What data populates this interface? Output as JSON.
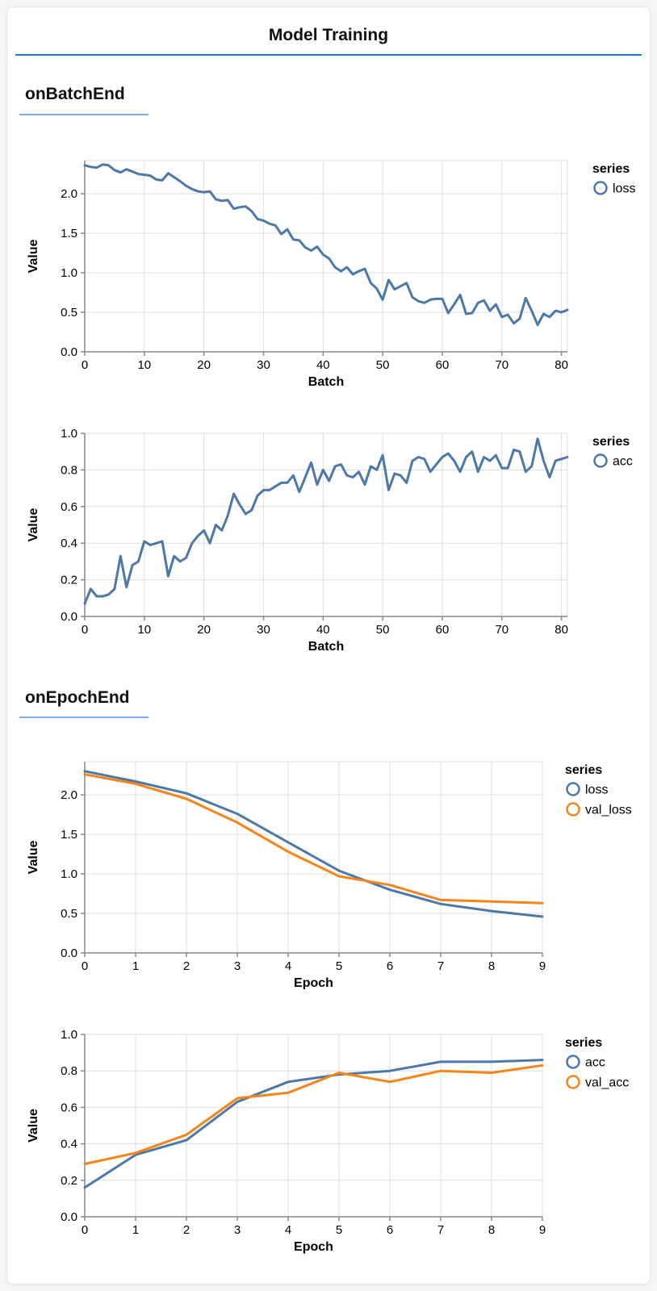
{
  "window": {
    "title": "Model Training"
  },
  "sections": [
    {
      "title": "onBatchEnd"
    },
    {
      "title": "onEpochEnd"
    }
  ],
  "colors": {
    "series_blue": "#4c78a8",
    "series_orange": "#f58518",
    "title_underline": "#1a73e8",
    "section_underline": "#7baaf7",
    "grid": "#dddddd",
    "axis_domain": "#888888",
    "text": "#000000"
  },
  "chart_data": [
    {
      "type": "line",
      "section": "onBatchEnd",
      "xlabel": "Batch",
      "ylabel": "Value",
      "xlim": [
        0,
        81
      ],
      "ylim": [
        0,
        2.42
      ],
      "xticks": [
        0,
        10,
        20,
        30,
        40,
        50,
        60,
        70,
        80
      ],
      "xtick_labels": [
        "0",
        "10",
        "20",
        "30",
        "40",
        "50",
        "60",
        "70",
        "80"
      ],
      "yticks": [
        0,
        0.5,
        1.0,
        1.5,
        2.0
      ],
      "ytick_labels": [
        "0.0",
        "0.5",
        "1.0",
        "1.5",
        "2.0"
      ],
      "grid": true,
      "legend_position": "right",
      "legend_title": "series",
      "series": [
        {
          "name": "loss",
          "color": "#4c78a8",
          "values": [
            2.36,
            2.34,
            2.33,
            2.37,
            2.36,
            2.3,
            2.27,
            2.31,
            2.28,
            2.25,
            2.24,
            2.23,
            2.18,
            2.17,
            2.26,
            2.21,
            2.16,
            2.1,
            2.06,
            2.03,
            2.02,
            2.03,
            1.93,
            1.91,
            1.92,
            1.81,
            1.83,
            1.84,
            1.78,
            1.68,
            1.66,
            1.62,
            1.6,
            1.49,
            1.55,
            1.42,
            1.41,
            1.32,
            1.28,
            1.33,
            1.23,
            1.18,
            1.07,
            1.02,
            1.07,
            0.98,
            1.02,
            1.05,
            0.87,
            0.8,
            0.66,
            0.91,
            0.79,
            0.83,
            0.87,
            0.69,
            0.64,
            0.62,
            0.66,
            0.67,
            0.67,
            0.49,
            0.6,
            0.72,
            0.48,
            0.49,
            0.62,
            0.65,
            0.52,
            0.6,
            0.44,
            0.47,
            0.36,
            0.42,
            0.68,
            0.52,
            0.34,
            0.48,
            0.44,
            0.52,
            0.5,
            0.53
          ]
        }
      ]
    },
    {
      "type": "line",
      "section": "onBatchEnd",
      "xlabel": "Batch",
      "ylabel": "Value",
      "xlim": [
        0,
        81
      ],
      "ylim": [
        0,
        1.0
      ],
      "xticks": [
        0,
        10,
        20,
        30,
        40,
        50,
        60,
        70,
        80
      ],
      "xtick_labels": [
        "0",
        "10",
        "20",
        "30",
        "40",
        "50",
        "60",
        "70",
        "80"
      ],
      "yticks": [
        0,
        0.2,
        0.4,
        0.6,
        0.8,
        1.0
      ],
      "ytick_labels": [
        "0.0",
        "0.2",
        "0.4",
        "0.6",
        "0.8",
        "1.0"
      ],
      "grid": true,
      "legend_position": "right",
      "legend_title": "series",
      "series": [
        {
          "name": "acc",
          "color": "#4c78a8",
          "values": [
            0.07,
            0.15,
            0.11,
            0.11,
            0.12,
            0.15,
            0.33,
            0.16,
            0.28,
            0.3,
            0.41,
            0.39,
            0.4,
            0.41,
            0.22,
            0.33,
            0.3,
            0.32,
            0.4,
            0.44,
            0.47,
            0.4,
            0.5,
            0.47,
            0.55,
            0.67,
            0.61,
            0.56,
            0.58,
            0.66,
            0.69,
            0.69,
            0.71,
            0.73,
            0.73,
            0.77,
            0.68,
            0.76,
            0.84,
            0.72,
            0.8,
            0.74,
            0.82,
            0.83,
            0.77,
            0.76,
            0.79,
            0.72,
            0.82,
            0.8,
            0.88,
            0.69,
            0.78,
            0.77,
            0.73,
            0.85,
            0.87,
            0.86,
            0.79,
            0.83,
            0.87,
            0.89,
            0.85,
            0.79,
            0.87,
            0.9,
            0.79,
            0.87,
            0.85,
            0.88,
            0.81,
            0.81,
            0.91,
            0.9,
            0.79,
            0.82,
            0.97,
            0.85,
            0.76,
            0.85,
            0.86,
            0.87
          ]
        }
      ]
    },
    {
      "type": "line",
      "section": "onEpochEnd",
      "xlabel": "Epoch",
      "ylabel": "Value",
      "xlim": [
        0,
        9
      ],
      "ylim": [
        0,
        2.42
      ],
      "xticks": [
        0,
        1,
        2,
        3,
        4,
        5,
        6,
        7,
        8,
        9
      ],
      "xtick_labels": [
        "0",
        "1",
        "2",
        "3",
        "4",
        "5",
        "6",
        "7",
        "8",
        "9"
      ],
      "yticks": [
        0,
        0.5,
        1.0,
        1.5,
        2.0
      ],
      "ytick_labels": [
        "0.0",
        "0.5",
        "1.0",
        "1.5",
        "2.0"
      ],
      "grid": true,
      "legend_position": "right",
      "legend_title": "series",
      "series": [
        {
          "name": "loss",
          "color": "#4c78a8",
          "values": [
            2.3,
            2.17,
            2.02,
            1.76,
            1.4,
            1.04,
            0.8,
            0.62,
            0.53,
            0.46
          ]
        },
        {
          "name": "val_loss",
          "color": "#f58518",
          "values": [
            2.26,
            2.14,
            1.95,
            1.65,
            1.28,
            0.97,
            0.86,
            0.67,
            0.65,
            0.63
          ]
        }
      ]
    },
    {
      "type": "line",
      "section": "onEpochEnd",
      "xlabel": "Epoch",
      "ylabel": "Value",
      "xlim": [
        0,
        9
      ],
      "ylim": [
        0,
        1.0
      ],
      "xticks": [
        0,
        1,
        2,
        3,
        4,
        5,
        6,
        7,
        8,
        9
      ],
      "xtick_labels": [
        "0",
        "1",
        "2",
        "3",
        "4",
        "5",
        "6",
        "7",
        "8",
        "9"
      ],
      "yticks": [
        0,
        0.2,
        0.4,
        0.6,
        0.8,
        1.0
      ],
      "ytick_labels": [
        "0.0",
        "0.2",
        "0.4",
        "0.6",
        "0.8",
        "1.0"
      ],
      "grid": true,
      "legend_position": "right",
      "legend_title": "series",
      "series": [
        {
          "name": "acc",
          "color": "#4c78a8",
          "values": [
            0.16,
            0.34,
            0.42,
            0.63,
            0.74,
            0.78,
            0.8,
            0.85,
            0.85,
            0.86
          ]
        },
        {
          "name": "val_acc",
          "color": "#f58518",
          "values": [
            0.29,
            0.35,
            0.45,
            0.65,
            0.68,
            0.79,
            0.74,
            0.8,
            0.79,
            0.83
          ]
        }
      ]
    }
  ]
}
